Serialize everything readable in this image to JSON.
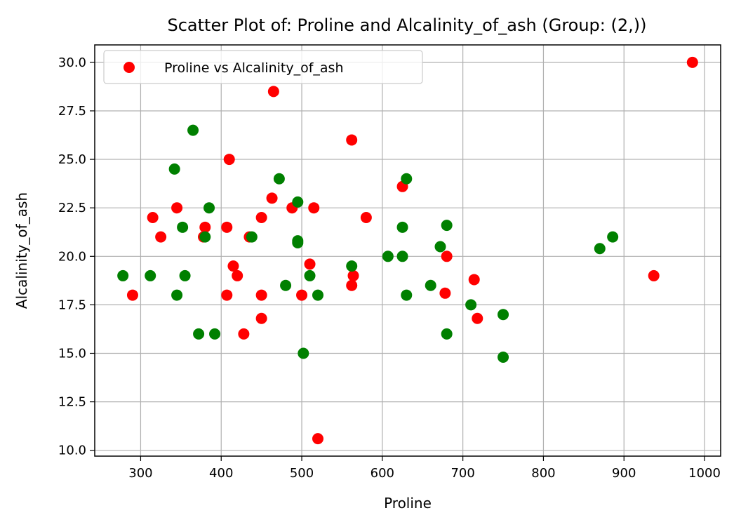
{
  "chart_data": {
    "type": "scatter",
    "title": "Scatter Plot of: Proline and Alcalinity_of_ash (Group: (2,))",
    "xlabel": "Proline",
    "ylabel": "Alcalinity_of_ash",
    "xlim": [
      243,
      1020
    ],
    "ylim": [
      9.7,
      30.9
    ],
    "xticks": [
      300,
      400,
      500,
      600,
      700,
      800,
      900,
      1000
    ],
    "xtick_labels": [
      "300",
      "400",
      "500",
      "600",
      "700",
      "800",
      "900",
      "1000"
    ],
    "yticks": [
      10.0,
      12.5,
      15.0,
      17.5,
      20.0,
      22.5,
      25.0,
      27.5,
      30.0
    ],
    "ytick_labels": [
      "10.0",
      "12.5",
      "15.0",
      "17.5",
      "20.0",
      "22.5",
      "25.0",
      "27.5",
      "30.0"
    ],
    "grid": true,
    "legend": {
      "placement": "top-left",
      "entries": [
        "Proline vs Alcalinity_of_ash"
      ]
    },
    "colors": {
      "red": "#ff0000",
      "green": "#008000"
    },
    "series": [
      {
        "name": "Proline vs Alcalinity_of_ash",
        "color": "#ff0000",
        "points": [
          [
            290,
            18.0
          ],
          [
            315,
            22.0
          ],
          [
            325,
            21.0
          ],
          [
            345,
            22.5
          ],
          [
            378,
            21.0
          ],
          [
            380,
            21.5
          ],
          [
            407,
            18.0
          ],
          [
            407,
            21.5
          ],
          [
            410,
            25.0
          ],
          [
            415,
            19.5
          ],
          [
            420,
            19.0
          ],
          [
            428,
            16.0
          ],
          [
            435,
            21.0
          ],
          [
            450,
            16.8
          ],
          [
            450,
            18.0
          ],
          [
            450,
            22.0
          ],
          [
            463,
            23.0
          ],
          [
            465,
            28.5
          ],
          [
            488,
            22.5
          ],
          [
            500,
            18.0
          ],
          [
            510,
            19.6
          ],
          [
            515,
            22.5
          ],
          [
            520,
            10.6
          ],
          [
            562,
            26.0
          ],
          [
            562,
            18.5
          ],
          [
            564,
            19.0
          ],
          [
            580,
            22.0
          ],
          [
            625,
            23.6
          ],
          [
            678,
            18.1
          ],
          [
            680,
            20.0
          ],
          [
            714,
            18.8
          ],
          [
            718,
            16.8
          ],
          [
            937,
            19.0
          ],
          [
            985,
            30.0
          ]
        ]
      },
      {
        "color": "#008000",
        "points": [
          [
            278,
            19.0
          ],
          [
            312,
            19.0
          ],
          [
            342,
            24.5
          ],
          [
            345,
            18.0
          ],
          [
            352,
            21.5
          ],
          [
            355,
            19.0
          ],
          [
            365,
            26.5
          ],
          [
            372,
            16.0
          ],
          [
            380,
            21.0
          ],
          [
            385,
            22.5
          ],
          [
            392,
            16.0
          ],
          [
            438,
            21.0
          ],
          [
            472,
            24.0
          ],
          [
            480,
            18.5
          ],
          [
            495,
            22.8
          ],
          [
            495,
            20.8
          ],
          [
            495,
            20.7
          ],
          [
            502,
            15.0
          ],
          [
            510,
            19.0
          ],
          [
            520,
            18.0
          ],
          [
            562,
            19.5
          ],
          [
            607,
            20.0
          ],
          [
            625,
            21.5
          ],
          [
            625,
            20.0
          ],
          [
            630,
            24.0
          ],
          [
            630,
            18.0
          ],
          [
            660,
            18.5
          ],
          [
            672,
            20.5
          ],
          [
            680,
            21.6
          ],
          [
            680,
            16.0
          ],
          [
            710,
            17.5
          ],
          [
            750,
            17.0
          ],
          [
            750,
            14.8
          ],
          [
            870,
            20.4
          ],
          [
            886,
            21.0
          ]
        ]
      }
    ]
  }
}
